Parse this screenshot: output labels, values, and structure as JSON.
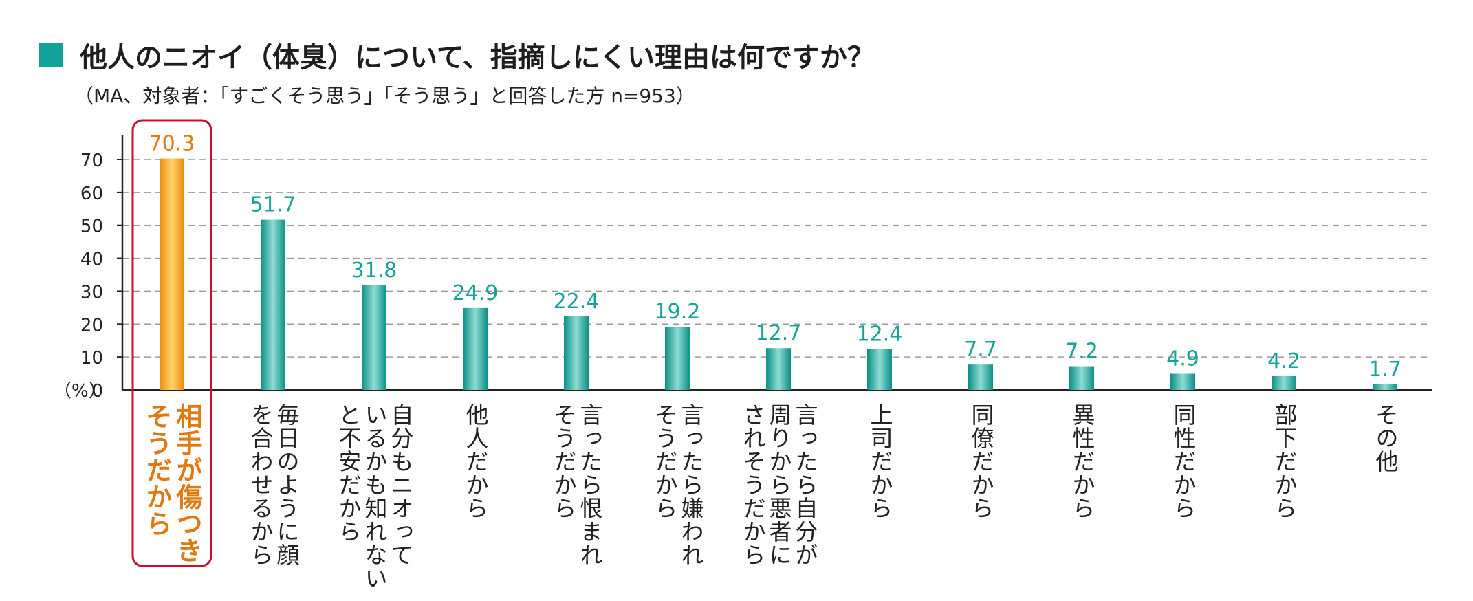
{
  "title": "他人のニオイ（体臭）について、指摘しにくい理由は何ですか？",
  "subtitle": "（MA、対象者：「すごくそう思う」「そう思う」と回答した方 n=953）",
  "colors": {
    "accent": "#14a39a",
    "highlight": "#f39a12",
    "highlight_text": "#e07a10",
    "highlight_box": "#c8102e",
    "label_teal": "#14a39a"
  },
  "chart_data": {
    "type": "bar",
    "orientation": "vertical",
    "ylabel": "（%）",
    "ylim": [
      0,
      70
    ],
    "yticks": [
      0,
      10,
      20,
      30,
      40,
      50,
      60,
      70
    ],
    "grid": true,
    "highlight_index": 0,
    "categories": [
      "相手が傷つき\nそうだから",
      "毎日のように顔\nを合わせるから",
      "自分もニオって\nいるかも知れない\nと不安だから",
      "他人だから",
      "言ったら恨まれ\nそうだから",
      "言ったら嫌われ\nそうだから",
      "言ったら自分が\n周りから悪者に\nされそうだから",
      "上司だから",
      "同僚だから",
      "異性だから",
      "同性だから",
      "部下だから",
      "その他"
    ],
    "values": [
      70.3,
      51.7,
      31.8,
      24.9,
      22.4,
      19.2,
      12.7,
      12.4,
      7.7,
      7.2,
      4.9,
      4.2,
      1.7
    ],
    "value_labels": [
      "70.3",
      "51.7",
      "31.8",
      "24.9",
      "22.4",
      "19.2",
      "12.7",
      "12.4",
      "7.7",
      "7.2",
      "4.9",
      "4.2",
      "1.7"
    ]
  }
}
